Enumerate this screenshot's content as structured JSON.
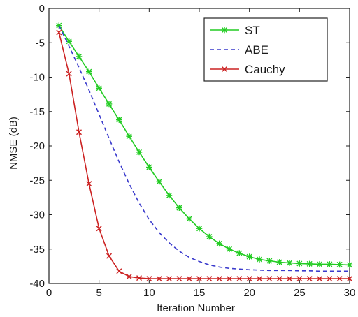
{
  "chart_data": {
    "type": "line",
    "title": "",
    "xlabel": "Iteration Number",
    "ylabel": "NMSE (dB)",
    "xlim": [
      0,
      30
    ],
    "ylim": [
      -40,
      0
    ],
    "xticks": [
      0,
      5,
      10,
      15,
      20,
      25,
      30
    ],
    "yticks": [
      0,
      -5,
      -10,
      -15,
      -20,
      -25,
      -30,
      -35,
      -40
    ],
    "grid": false,
    "legend_position": "top-right",
    "series": [
      {
        "name": "ST",
        "color": "#22cc22",
        "linestyle": "solid",
        "marker": "asterisk",
        "x": [
          1,
          2,
          3,
          4,
          5,
          6,
          7,
          8,
          9,
          10,
          11,
          12,
          13,
          14,
          15,
          16,
          17,
          18,
          19,
          20,
          21,
          22,
          23,
          24,
          25,
          26,
          27,
          28,
          29,
          30
        ],
        "y": [
          -2.5,
          -4.8,
          -7.0,
          -9.2,
          -11.6,
          -13.9,
          -16.2,
          -18.6,
          -20.9,
          -23.1,
          -25.2,
          -27.2,
          -29.0,
          -30.6,
          -32.0,
          -33.2,
          -34.2,
          -35.0,
          -35.6,
          -36.1,
          -36.5,
          -36.7,
          -36.9,
          -37.0,
          -37.1,
          -37.15,
          -37.2,
          -37.2,
          -37.25,
          -37.3
        ]
      },
      {
        "name": "ABE",
        "color": "#3a3acc",
        "linestyle": "dashed",
        "marker": "none",
        "x": [
          1,
          2,
          3,
          4,
          5,
          6,
          7,
          8,
          9,
          10,
          11,
          12,
          13,
          14,
          15,
          16,
          17,
          18,
          19,
          20,
          21,
          22,
          23,
          24,
          25,
          26,
          27,
          28,
          29,
          30
        ],
        "y": [
          -2.5,
          -5.5,
          -8.6,
          -11.9,
          -15.4,
          -18.9,
          -22.3,
          -25.5,
          -28.3,
          -30.7,
          -32.6,
          -34.1,
          -35.3,
          -36.2,
          -36.8,
          -37.3,
          -37.6,
          -37.8,
          -37.9,
          -38.0,
          -38.05,
          -38.1,
          -38.1,
          -38.1,
          -38.15,
          -38.15,
          -38.2,
          -38.2,
          -38.2,
          -38.2
        ]
      },
      {
        "name": "Cauchy",
        "color": "#cc2222",
        "linestyle": "solid",
        "marker": "x",
        "x": [
          1,
          2,
          3,
          4,
          5,
          6,
          7,
          8,
          9,
          10,
          11,
          12,
          13,
          14,
          15,
          16,
          17,
          18,
          19,
          20,
          21,
          22,
          23,
          24,
          25,
          26,
          27,
          28,
          29,
          30
        ],
        "y": [
          -3.5,
          -9.5,
          -18.0,
          -25.5,
          -32.0,
          -36.0,
          -38.2,
          -39.0,
          -39.2,
          -39.3,
          -39.3,
          -39.3,
          -39.3,
          -39.3,
          -39.3,
          -39.3,
          -39.3,
          -39.3,
          -39.3,
          -39.3,
          -39.3,
          -39.3,
          -39.3,
          -39.3,
          -39.3,
          -39.3,
          -39.3,
          -39.3,
          -39.3,
          -39.3
        ]
      }
    ]
  }
}
